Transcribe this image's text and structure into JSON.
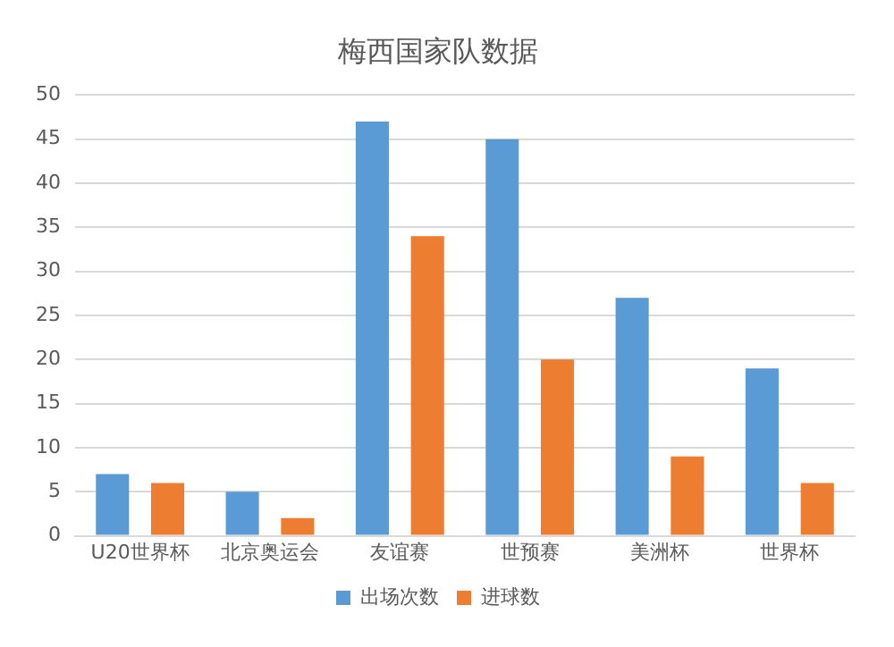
{
  "chart_data": {
    "type": "bar",
    "title": "梅西国家队数据",
    "categories": [
      "U20世界杯",
      "北京奥运会",
      "友谊赛",
      "世预赛",
      "美洲杯",
      "世界杯"
    ],
    "series": [
      {
        "name": "出场次数",
        "color": "#5b9bd5",
        "values": [
          7,
          5,
          47,
          45,
          27,
          19
        ]
      },
      {
        "name": "进球数",
        "color": "#ed7d31",
        "values": [
          6,
          2,
          34,
          20,
          9,
          6
        ]
      }
    ],
    "ylim": [
      0,
      50
    ],
    "yticks": [
      0,
      5,
      10,
      15,
      20,
      25,
      30,
      35,
      40,
      45,
      50
    ],
    "grid": "y",
    "legend": "bottom"
  }
}
